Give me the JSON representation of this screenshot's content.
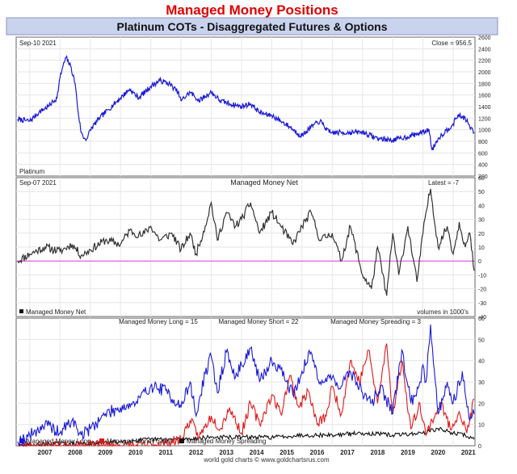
{
  "header": {
    "title": "Managed Money Positions",
    "subtitle": "Platinum COTs - Disaggregated Futures & Options"
  },
  "footer": {
    "credit": "world gold charts © www.goldchartsrus.com"
  },
  "colors": {
    "title": "#e00000",
    "band": "#c9d3ee",
    "price_line": "#1a1ad6",
    "net_line": "#333333",
    "zero_line": "#e040e0",
    "long_line": "#1a1ad6",
    "short_line": "#e01818",
    "spread_line": "#111111"
  },
  "chart_data": [
    {
      "type": "line",
      "panel": "price",
      "top_left_label": "Sep-10  2021",
      "top_right_label": "Close = 956.5",
      "bottom_left_label": "Platinum",
      "ylim": [
        200,
        2600
      ],
      "yticks": [
        200,
        400,
        600,
        800,
        1000,
        1200,
        1400,
        1600,
        1800,
        2000,
        2200,
        2400,
        2600
      ],
      "grid": true,
      "series": [
        {
          "x": [
            2006.6,
            2007.0,
            2007.3,
            2007.6,
            2007.9,
            2008.0,
            2008.1,
            2008.2,
            2008.35,
            2008.5,
            2008.6,
            2008.7,
            2008.8,
            2008.9,
            2009.0,
            2009.3,
            2009.6,
            2010.0,
            2010.3,
            2010.6,
            2011.0,
            2011.3,
            2011.6,
            2011.9,
            2012.0,
            2012.3,
            2012.6,
            2013.0,
            2013.3,
            2013.6,
            2014.0,
            2014.3,
            2014.6,
            2014.9,
            2015.0,
            2015.3,
            2015.6,
            2015.9,
            2016.0,
            2016.3,
            2016.6,
            2016.9,
            2017.0,
            2017.5,
            2018.0,
            2018.5,
            2019.0,
            2019.5,
            2020.0,
            2020.2,
            2020.3,
            2020.5,
            2021.0,
            2021.15,
            2021.4,
            2021.55,
            2021.69
          ],
          "y": [
            1180,
            1150,
            1300,
            1400,
            1550,
            1900,
            2100,
            2250,
            2100,
            1800,
            1300,
            950,
            850,
            850,
            1000,
            1200,
            1350,
            1550,
            1700,
            1550,
            1750,
            1850,
            1800,
            1650,
            1500,
            1650,
            1500,
            1650,
            1500,
            1450,
            1400,
            1450,
            1300,
            1250,
            1250,
            1150,
            1050,
            920,
            900,
            1050,
            1150,
            950,
            950,
            950,
            960,
            850,
            820,
            880,
            960,
            1000,
            650,
            850,
            1100,
            1250,
            1200,
            1050,
            956.5
          ]
        }
      ]
    },
    {
      "type": "line",
      "panel": "net",
      "title": "Managed Money Net",
      "top_left_label": "Sep-07  2021",
      "top_right_label": "Latest = -7",
      "bottom_right_label": "volumes in 1000's",
      "ylim": [
        -40,
        60
      ],
      "yticks": [
        -40,
        -30,
        -20,
        -10,
        0,
        10,
        20,
        30,
        40,
        50,
        60
      ],
      "grid": true,
      "zero_line": 0,
      "legend": "bottom-left",
      "series": [
        {
          "name": "Managed Money Net",
          "x": [
            2006.6,
            2007.0,
            2007.5,
            2008.0,
            2008.4,
            2008.7,
            2009.0,
            2009.5,
            2010.0,
            2010.3,
            2010.7,
            2011.0,
            2011.3,
            2011.7,
            2012.0,
            2012.3,
            2012.5,
            2012.8,
            2013.0,
            2013.2,
            2013.5,
            2013.8,
            2014.0,
            2014.3,
            2014.6,
            2015.0,
            2015.3,
            2015.7,
            2016.0,
            2016.3,
            2016.6,
            2017.0,
            2017.3,
            2017.6,
            2018.0,
            2018.3,
            2018.5,
            2018.8,
            2019.0,
            2019.2,
            2019.5,
            2019.8,
            2020.0,
            2020.1,
            2020.25,
            2020.5,
            2020.8,
            2021.0,
            2021.2,
            2021.4,
            2021.55,
            2021.69
          ],
          "y": [
            0,
            5,
            10,
            7,
            12,
            4,
            8,
            15,
            12,
            22,
            18,
            25,
            15,
            20,
            8,
            20,
            5,
            25,
            42,
            15,
            35,
            25,
            30,
            42,
            20,
            35,
            25,
            12,
            25,
            35,
            15,
            20,
            0,
            25,
            -10,
            -20,
            10,
            -25,
            20,
            -10,
            25,
            -15,
            20,
            35,
            52,
            10,
            25,
            5,
            28,
            10,
            20,
            -7
          ]
        }
      ]
    },
    {
      "type": "line",
      "panel": "components",
      "series_labels": [
        "Managed Money Long = 15",
        "Managed Money Short = 22",
        "Managed Money Spreading = 3"
      ],
      "ylim": [
        0,
        60
      ],
      "yticks": [
        0,
        10,
        20,
        30,
        40,
        50,
        60
      ],
      "grid": true,
      "legend": "bottom-left",
      "categories": [
        "2007",
        "2008",
        "2009",
        "2010",
        "2011",
        "2012",
        "2013",
        "2014",
        "2015",
        "2016",
        "2017",
        "2018",
        "2019",
        "2020",
        "2021"
      ],
      "series": [
        {
          "name": "Managed Money Long",
          "x": [
            2006.6,
            2007.0,
            2007.5,
            2008.0,
            2008.4,
            2008.7,
            2009.0,
            2009.5,
            2010.0,
            2010.5,
            2011.0,
            2011.5,
            2012.0,
            2012.3,
            2012.5,
            2012.8,
            2013.0,
            2013.2,
            2013.5,
            2013.8,
            2014.0,
            2014.3,
            2014.6,
            2015.0,
            2015.3,
            2015.7,
            2016.0,
            2016.3,
            2016.6,
            2017.0,
            2017.3,
            2017.6,
            2018.0,
            2018.3,
            2018.6,
            2019.0,
            2019.3,
            2019.6,
            2019.9,
            2020.0,
            2020.1,
            2020.25,
            2020.5,
            2020.8,
            2021.0,
            2021.3,
            2021.55,
            2021.69
          ],
          "y": [
            2,
            5,
            10,
            6,
            12,
            5,
            8,
            15,
            18,
            20,
            28,
            26,
            18,
            30,
            14,
            34,
            42,
            25,
            44,
            32,
            38,
            46,
            30,
            40,
            36,
            24,
            35,
            44,
            30,
            32,
            28,
            35,
            25,
            20,
            28,
            15,
            45,
            20,
            30,
            38,
            30,
            57,
            15,
            30,
            20,
            35,
            12,
            15
          ]
        },
        {
          "name": "Managed Money Short",
          "x": [
            2006.6,
            2007.5,
            2008.5,
            2009.5,
            2010.5,
            2011.5,
            2012.0,
            2012.3,
            2012.6,
            2013.0,
            2013.3,
            2013.6,
            2014.0,
            2014.3,
            2014.6,
            2015.0,
            2015.3,
            2015.6,
            2015.9,
            2016.2,
            2016.5,
            2016.8,
            2017.0,
            2017.3,
            2017.6,
            2017.9,
            2018.2,
            2018.5,
            2018.8,
            2019.0,
            2019.3,
            2019.6,
            2019.9,
            2020.1,
            2020.3,
            2020.6,
            2020.9,
            2021.2,
            2021.45,
            2021.69
          ],
          "y": [
            0,
            0,
            0,
            0,
            0,
            1,
            3,
            12,
            4,
            14,
            8,
            18,
            6,
            20,
            10,
            24,
            15,
            33,
            18,
            26,
            10,
            14,
            28,
            15,
            40,
            30,
            45,
            20,
            48,
            15,
            40,
            8,
            20,
            5,
            12,
            20,
            8,
            16,
            6,
            22
          ]
        },
        {
          "name": "Managed Money Spreading",
          "x": [
            2006.6,
            2008.0,
            2009.0,
            2010.0,
            2011.0,
            2012.0,
            2013.0,
            2014.0,
            2015.0,
            2016.0,
            2017.0,
            2018.0,
            2019.0,
            2020.0,
            2020.5,
            2021.0,
            2021.4,
            2021.69
          ],
          "y": [
            0,
            1,
            1,
            2,
            3,
            3,
            4,
            4,
            4,
            5,
            5,
            6,
            5,
            6,
            8,
            6,
            5,
            3
          ]
        }
      ]
    }
  ],
  "x_axis": {
    "labels": [
      "2007",
      "2008",
      "2009",
      "2010",
      "2011",
      "2012",
      "2013",
      "2014",
      "2015",
      "2016",
      "2017",
      "2018",
      "2019",
      "2020",
      "2021"
    ],
    "range": [
      2006.55,
      2021.72
    ]
  }
}
